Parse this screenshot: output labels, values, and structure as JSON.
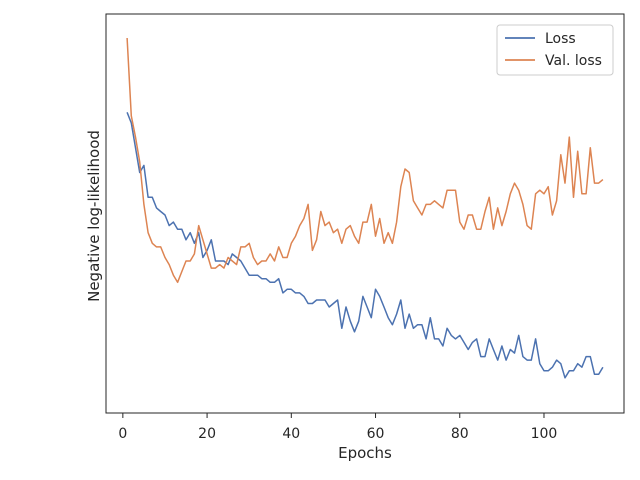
{
  "chart_data": {
    "type": "line",
    "title": "",
    "xlabel": "Epochs",
    "ylabel": "Negative log-likelihood",
    "xlim": [
      -4,
      119
    ],
    "ylim": [
      0.0,
      1.0
    ],
    "xticks": [
      0,
      20,
      40,
      60,
      80,
      100
    ],
    "yticks_shown": false,
    "grid": false,
    "legend_position": "top-right",
    "colors": {
      "loss": "#4c72b0",
      "val_loss": "#dd8452",
      "axes": "#262626"
    },
    "series": [
      {
        "name": "Loss",
        "x": [
          1,
          2,
          3,
          4,
          5,
          6,
          7,
          8,
          9,
          10,
          11,
          12,
          13,
          14,
          15,
          16,
          17,
          18,
          19,
          20,
          21,
          22,
          23,
          24,
          25,
          26,
          27,
          28,
          29,
          30,
          31,
          32,
          33,
          34,
          35,
          36,
          37,
          38,
          39,
          40,
          41,
          42,
          43,
          44,
          45,
          46,
          47,
          48,
          49,
          50,
          51,
          52,
          53,
          54,
          55,
          56,
          57,
          58,
          59,
          60,
          61,
          62,
          63,
          64,
          65,
          66,
          67,
          68,
          69,
          70,
          71,
          72,
          73,
          74,
          75,
          76,
          77,
          78,
          79,
          80,
          81,
          82,
          83,
          84,
          85,
          86,
          87,
          88,
          89,
          90,
          91,
          92,
          93,
          94,
          95,
          96,
          97,
          98,
          99,
          100,
          101,
          102,
          103,
          104,
          105,
          106,
          107,
          108,
          109,
          110,
          111,
          112,
          113,
          114
        ],
        "values": [
          0.79,
          0.76,
          0.69,
          0.62,
          0.64,
          0.55,
          0.55,
          0.52,
          0.51,
          0.5,
          0.47,
          0.48,
          0.46,
          0.46,
          0.43,
          0.45,
          0.42,
          0.45,
          0.38,
          0.4,
          0.43,
          0.37,
          0.37,
          0.37,
          0.36,
          0.39,
          0.38,
          0.37,
          0.35,
          0.33,
          0.33,
          0.33,
          0.32,
          0.32,
          0.31,
          0.31,
          0.32,
          0.28,
          0.29,
          0.29,
          0.28,
          0.28,
          0.27,
          0.25,
          0.25,
          0.26,
          0.26,
          0.26,
          0.24,
          0.25,
          0.26,
          0.18,
          0.24,
          0.2,
          0.17,
          0.2,
          0.27,
          0.24,
          0.21,
          0.29,
          0.27,
          0.24,
          0.21,
          0.19,
          0.22,
          0.26,
          0.18,
          0.22,
          0.18,
          0.19,
          0.19,
          0.15,
          0.21,
          0.15,
          0.15,
          0.13,
          0.18,
          0.16,
          0.15,
          0.16,
          0.14,
          0.12,
          0.14,
          0.15,
          0.1,
          0.1,
          0.15,
          0.12,
          0.09,
          0.13,
          0.09,
          0.12,
          0.11,
          0.16,
          0.1,
          0.09,
          0.09,
          0.15,
          0.08,
          0.06,
          0.06,
          0.07,
          0.09,
          0.08,
          0.04,
          0.06,
          0.06,
          0.08,
          0.07,
          0.1,
          0.1,
          0.05,
          0.05,
          0.07
        ]
      },
      {
        "name": "Val. loss",
        "x": [
          1,
          2,
          3,
          4,
          5,
          6,
          7,
          8,
          9,
          10,
          11,
          12,
          13,
          14,
          15,
          16,
          17,
          18,
          19,
          20,
          21,
          22,
          23,
          24,
          25,
          26,
          27,
          28,
          29,
          30,
          31,
          32,
          33,
          34,
          35,
          36,
          37,
          38,
          39,
          40,
          41,
          42,
          43,
          44,
          45,
          46,
          47,
          48,
          49,
          50,
          51,
          52,
          53,
          54,
          55,
          56,
          57,
          58,
          59,
          60,
          61,
          62,
          63,
          64,
          65,
          66,
          67,
          68,
          69,
          70,
          71,
          72,
          73,
          74,
          75,
          76,
          77,
          78,
          79,
          80,
          81,
          82,
          83,
          84,
          85,
          86,
          87,
          88,
          89,
          90,
          91,
          92,
          93,
          94,
          95,
          96,
          97,
          98,
          99,
          100,
          101,
          102,
          103,
          104,
          105,
          106,
          107,
          108,
          109,
          110,
          111,
          112,
          113,
          114
        ],
        "values": [
          1.0,
          0.78,
          0.72,
          0.65,
          0.53,
          0.45,
          0.42,
          0.41,
          0.41,
          0.38,
          0.36,
          0.33,
          0.31,
          0.34,
          0.37,
          0.37,
          0.39,
          0.47,
          0.43,
          0.39,
          0.35,
          0.35,
          0.36,
          0.35,
          0.38,
          0.37,
          0.36,
          0.41,
          0.41,
          0.42,
          0.38,
          0.36,
          0.37,
          0.37,
          0.39,
          0.37,
          0.41,
          0.38,
          0.38,
          0.42,
          0.44,
          0.47,
          0.49,
          0.53,
          0.4,
          0.43,
          0.51,
          0.47,
          0.48,
          0.45,
          0.46,
          0.42,
          0.46,
          0.47,
          0.44,
          0.42,
          0.48,
          0.48,
          0.53,
          0.44,
          0.49,
          0.42,
          0.45,
          0.42,
          0.48,
          0.58,
          0.63,
          0.62,
          0.54,
          0.52,
          0.5,
          0.53,
          0.53,
          0.54,
          0.53,
          0.52,
          0.57,
          0.57,
          0.57,
          0.48,
          0.46,
          0.5,
          0.5,
          0.46,
          0.46,
          0.51,
          0.55,
          0.46,
          0.52,
          0.47,
          0.51,
          0.56,
          0.59,
          0.57,
          0.53,
          0.47,
          0.46,
          0.56,
          0.57,
          0.56,
          0.58,
          0.5,
          0.54,
          0.67,
          0.59,
          0.72,
          0.55,
          0.68,
          0.56,
          0.56,
          0.69,
          0.59,
          0.59,
          0.6
        ]
      }
    ]
  }
}
